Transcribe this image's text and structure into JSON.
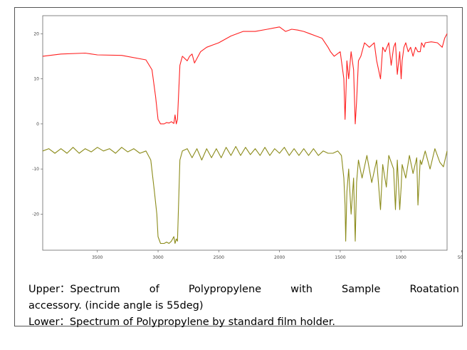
{
  "chart_data": {
    "type": "line",
    "xlabel": "",
    "ylabel": "",
    "x_reversed": true,
    "xlim": [
      3950,
      620
    ],
    "ylim": [
      -28,
      24
    ],
    "x_ticks": [
      3500,
      3000,
      2500,
      2000,
      1500,
      1000,
      500
    ],
    "y_ticks": [
      20,
      10,
      0,
      -10,
      -20
    ],
    "grid": false,
    "series": [
      {
        "color": "#ff2020",
        "x": [
          3950,
          3800,
          3600,
          3500,
          3300,
          3100,
          3050,
          3020,
          3000,
          2980,
          2950,
          2930,
          2910,
          2890,
          2870,
          2860,
          2850,
          2840,
          2820,
          2800,
          2760,
          2740,
          2720,
          2700,
          2650,
          2600,
          2550,
          2500,
          2400,
          2300,
          2200,
          2100,
          2000,
          1950,
          1900,
          1850,
          1800,
          1750,
          1700,
          1650,
          1600,
          1580,
          1550,
          1500,
          1470,
          1460,
          1455,
          1445,
          1430,
          1410,
          1390,
          1376,
          1365,
          1350,
          1330,
          1300,
          1260,
          1220,
          1200,
          1168,
          1150,
          1130,
          1100,
          1080,
          1060,
          1045,
          1030,
          1010,
          998,
          990,
          975,
          960,
          940,
          920,
          900,
          880,
          860,
          841,
          830,
          810,
          800,
          750,
          700,
          680,
          660,
          640,
          620
        ],
        "values": [
          15,
          15.5,
          15.7,
          15.3,
          15.2,
          14.2,
          12,
          6,
          1,
          0,
          0,
          0.3,
          0.2,
          0.5,
          0.1,
          2,
          0,
          1,
          13,
          15,
          14,
          15,
          15.5,
          13.5,
          16,
          17,
          17.5,
          18,
          19.5,
          20.5,
          20.5,
          21,
          21.5,
          20.5,
          21,
          20.8,
          20.5,
          20,
          19.5,
          19,
          17,
          16,
          15,
          16,
          10,
          1,
          5,
          14,
          10,
          16,
          12,
          0,
          5,
          14,
          15,
          18,
          17,
          18,
          14,
          10,
          17,
          16,
          18,
          13,
          17,
          18,
          11,
          16,
          10,
          14,
          17,
          18,
          16,
          17,
          15,
          17,
          16,
          16,
          18,
          17,
          18,
          18.2,
          18,
          17.5,
          17,
          19,
          20
        ]
      },
      {
        "color": "#8b8b1a",
        "x": [
          3950,
          3900,
          3850,
          3800,
          3750,
          3700,
          3650,
          3600,
          3550,
          3500,
          3450,
          3400,
          3350,
          3300,
          3250,
          3200,
          3150,
          3100,
          3060,
          3030,
          3010,
          3000,
          2980,
          2950,
          2930,
          2910,
          2890,
          2870,
          2860,
          2850,
          2840,
          2830,
          2820,
          2800,
          2760,
          2720,
          2680,
          2640,
          2600,
          2560,
          2520,
          2480,
          2440,
          2400,
          2360,
          2320,
          2280,
          2240,
          2200,
          2160,
          2120,
          2080,
          2040,
          2000,
          1960,
          1920,
          1880,
          1840,
          1800,
          1760,
          1720,
          1680,
          1640,
          1600,
          1560,
          1520,
          1490,
          1470,
          1460,
          1455,
          1445,
          1430,
          1410,
          1390,
          1376,
          1365,
          1350,
          1320,
          1280,
          1240,
          1200,
          1168,
          1150,
          1120,
          1100,
          1060,
          1045,
          1030,
          1010,
          998,
          990,
          960,
          930,
          900,
          870,
          860,
          841,
          830,
          800,
          760,
          720,
          680,
          650,
          620
        ],
        "values": [
          -6,
          -5.5,
          -6.5,
          -5.5,
          -6.5,
          -5.2,
          -6.5,
          -5.5,
          -6.2,
          -5.2,
          -6,
          -5.5,
          -6.5,
          -5.2,
          -6.2,
          -5.5,
          -6.5,
          -6,
          -8,
          -15,
          -20,
          -25,
          -26.5,
          -26.5,
          -26.2,
          -26.5,
          -26,
          -25,
          -26.5,
          -25.5,
          -26,
          -17,
          -8,
          -6,
          -5.5,
          -7.5,
          -5.5,
          -8,
          -5.5,
          -7.5,
          -5.5,
          -7.5,
          -5.2,
          -7,
          -5,
          -7,
          -5.2,
          -6.8,
          -5.5,
          -7,
          -5.2,
          -7,
          -5.5,
          -6.5,
          -5.2,
          -7,
          -5.5,
          -7,
          -5.5,
          -7,
          -5.5,
          -7,
          -6,
          -6.5,
          -6.5,
          -6,
          -7,
          -12,
          -18,
          -26,
          -15,
          -10,
          -20,
          -12,
          -26,
          -13,
          -8,
          -12,
          -7,
          -13,
          -8,
          -19,
          -9,
          -14,
          -7,
          -10,
          -19,
          -8,
          -19,
          -14,
          -9,
          -12,
          -7,
          -11,
          -7.5,
          -18,
          -8,
          -9,
          -6,
          -10,
          -5.5,
          -8.5,
          -9.5,
          -6
        ]
      }
    ]
  },
  "caption": {
    "upper_words": [
      "Upper：Spectrum",
      "of",
      "Polypropylene",
      "with",
      "Sample",
      "Roatation"
    ],
    "upper_line2": "accessory. (incide angle is 55deg)",
    "lower": "Lower：Spectrum of Polypropylene by standard film holder."
  }
}
